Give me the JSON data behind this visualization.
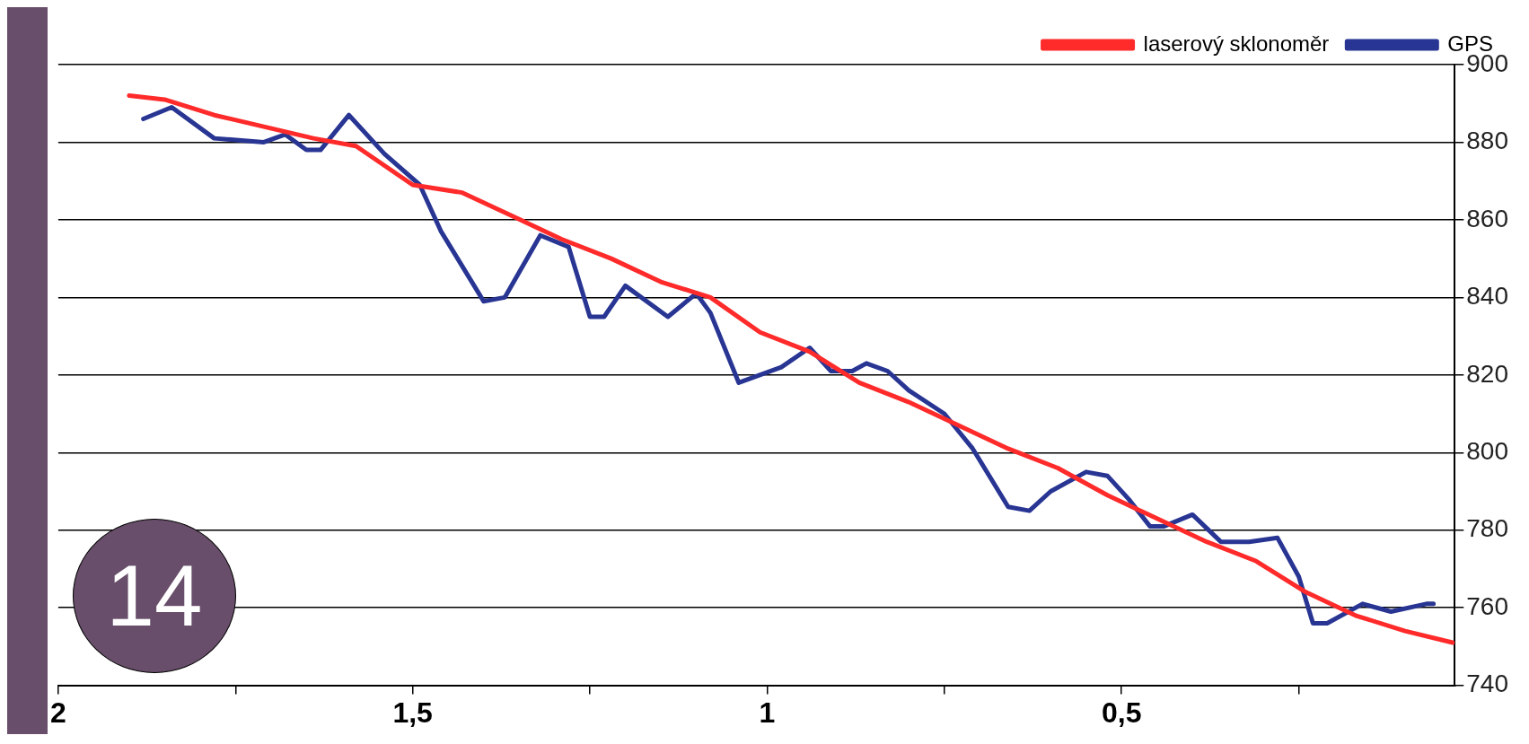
{
  "chart_data": {
    "type": "line",
    "xlim": [
      2,
      0.03
    ],
    "ylim": [
      740,
      900
    ],
    "xticks": [
      2,
      {
        "value": 1.75,
        "label": null
      },
      {
        "value": 1.5,
        "label": "1,5"
      },
      {
        "value": 1.25,
        "label": null
      },
      1,
      {
        "value": 0.75,
        "label": null
      },
      {
        "value": 0.5,
        "label": "0,5"
      },
      {
        "value": 0.25,
        "label": null
      }
    ],
    "yticks": [
      740,
      760,
      780,
      800,
      820,
      840,
      860,
      880,
      900
    ],
    "grid": "y",
    "legend": "top right",
    "marker": "none",
    "line_style": "solid",
    "annotations": [
      "14"
    ],
    "series": [
      {
        "name": "laserový sklonoměr",
        "color": "#ff2a2a",
        "x": [
          1.9,
          1.85,
          1.78,
          1.71,
          1.64,
          1.58,
          1.5,
          1.43,
          1.36,
          1.29,
          1.22,
          1.15,
          1.08,
          1.01,
          0.94,
          0.87,
          0.8,
          0.73,
          0.66,
          0.59,
          0.52,
          0.45,
          0.38,
          0.31,
          0.24,
          0.17,
          0.1,
          0.033
        ],
        "values": [
          892,
          891,
          887,
          884,
          881,
          879,
          869,
          867,
          861,
          855,
          850,
          844,
          840,
          831,
          826,
          818,
          813,
          807,
          801,
          796,
          789,
          783,
          777,
          772,
          764,
          758,
          754,
          751
        ]
      },
      {
        "name": "GPS",
        "color": "#283593",
        "x": [
          1.88,
          1.84,
          1.78,
          1.71,
          1.68,
          1.65,
          1.63,
          1.59,
          1.54,
          1.49,
          1.46,
          1.4,
          1.37,
          1.32,
          1.28,
          1.25,
          1.23,
          1.2,
          1.14,
          1.1,
          1.08,
          1.04,
          0.98,
          0.94,
          0.91,
          0.88,
          0.86,
          0.83,
          0.8,
          0.75,
          0.71,
          0.66,
          0.63,
          0.6,
          0.55,
          0.52,
          0.49,
          0.46,
          0.44,
          0.4,
          0.36,
          0.32,
          0.28,
          0.25,
          0.23,
          0.21,
          0.16,
          0.12,
          0.07,
          0.06
        ],
        "values": [
          886,
          889,
          881,
          880,
          882,
          878,
          878,
          887,
          877,
          869,
          857,
          839,
          840,
          856,
          853,
          835,
          835,
          843,
          835,
          841,
          836,
          818,
          822,
          827,
          821,
          821,
          823,
          821,
          816,
          810,
          801,
          786,
          785,
          790,
          795,
          794,
          788,
          781,
          781,
          784,
          777,
          777,
          778,
          768,
          756,
          756,
          761,
          759,
          761,
          761
        ]
      }
    ]
  }
}
